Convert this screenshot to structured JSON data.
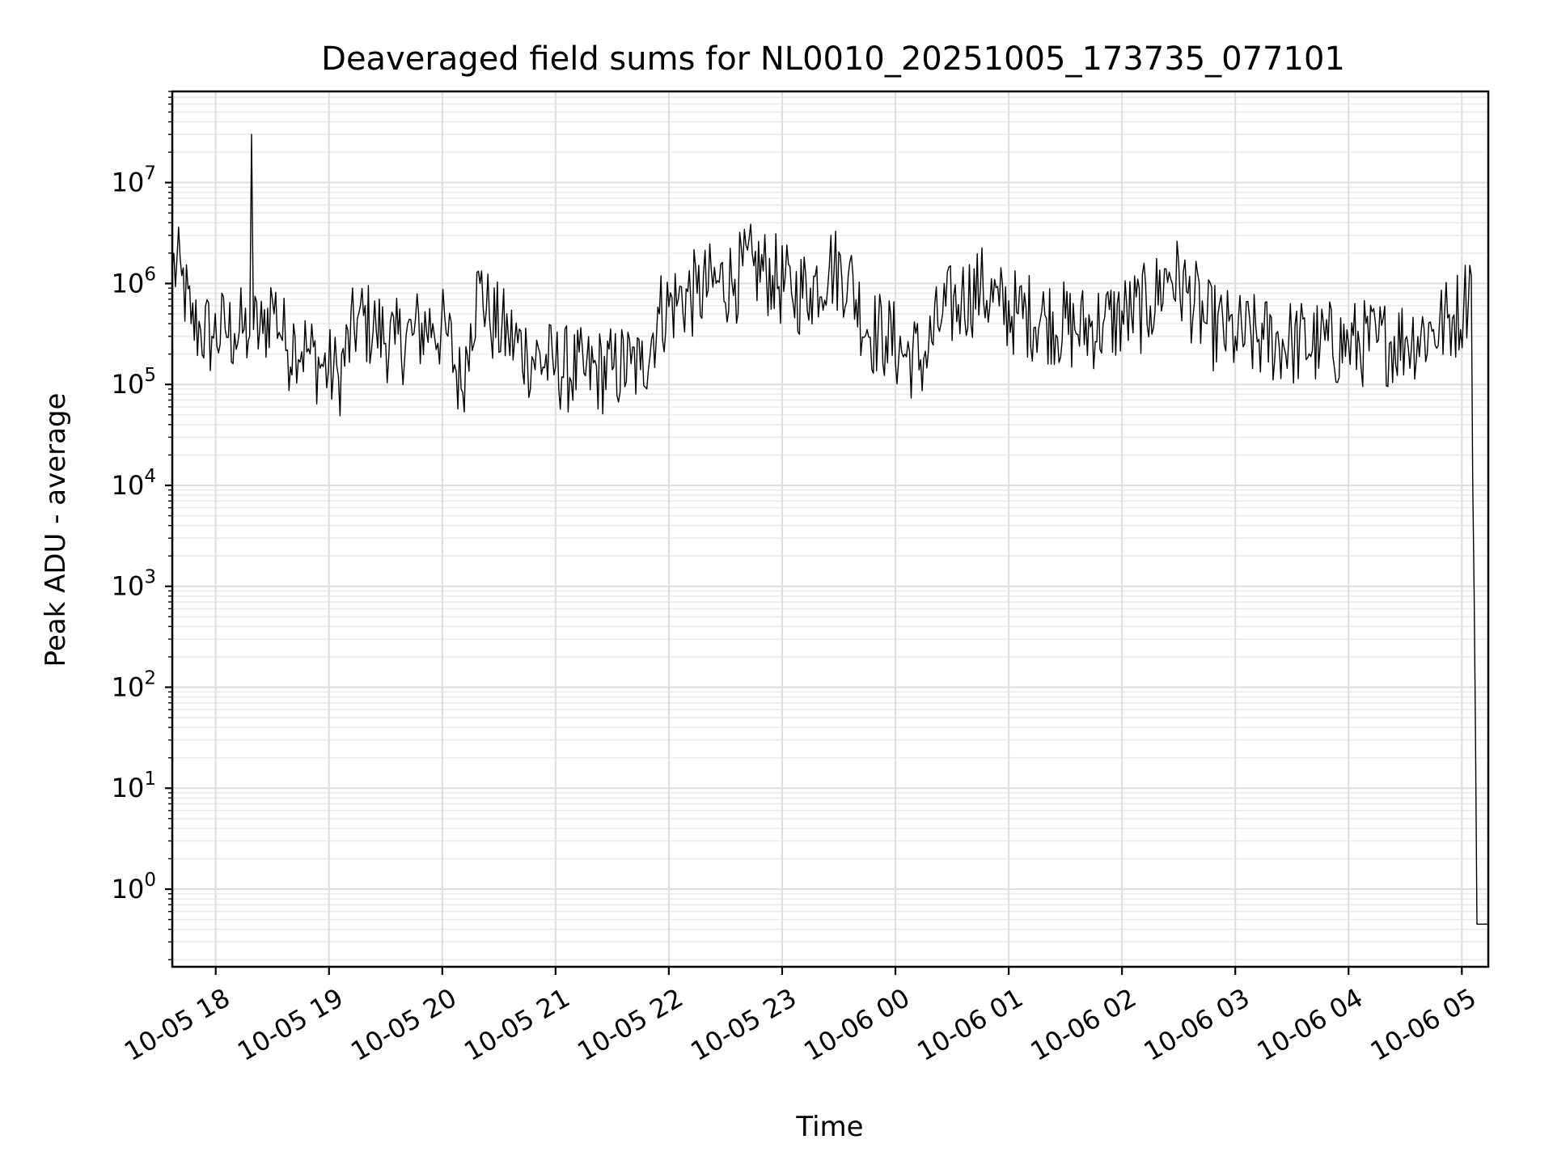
{
  "chart_data": {
    "type": "line",
    "title": "Deaveraged field sums for NL0010_20251005_173735_077101",
    "xlabel": "Time",
    "ylabel": "Peak ADU - average",
    "yscale": "log",
    "grid": true,
    "xlim": [
      "10-05 17:37",
      "10-06 05:14"
    ],
    "ylim": [
      0.17,
      80000000
    ],
    "xticks": [
      "10-05 18",
      "10-05 19",
      "10-05 20",
      "10-05 21",
      "10-05 22",
      "10-05 23",
      "10-06 00",
      "10-06 01",
      "10-06 02",
      "10-06 03",
      "10-06 04",
      "10-06 05"
    ],
    "yticks": [
      {
        "base": "10",
        "exp": "0",
        "value": 1
      },
      {
        "base": "10",
        "exp": "1",
        "value": 10
      },
      {
        "base": "10",
        "exp": "2",
        "value": 100
      },
      {
        "base": "10",
        "exp": "3",
        "value": 1000
      },
      {
        "base": "10",
        "exp": "4",
        "value": 10000
      },
      {
        "base": "10",
        "exp": "5",
        "value": 100000
      },
      {
        "base": "10",
        "exp": "6",
        "value": 1000000
      },
      {
        "base": "10",
        "exp": "7",
        "value": 10000000
      }
    ],
    "series": [
      {
        "color": "#000000",
        "x": [
          "10-05 17:37",
          "10-05 17:42",
          "10-05 17:47",
          "10-05 17:52",
          "10-05 17:58",
          "10-05 18:05",
          "10-05 18:10",
          "10-05 18:15",
          "10-05 18:18",
          "10-05 18:19",
          "10-05 18:20",
          "10-05 18:25",
          "10-05 18:30",
          "10-05 18:38",
          "10-05 18:42",
          "10-05 18:50",
          "10-05 18:57",
          "10-05 19:05",
          "10-05 19:15",
          "10-05 19:25",
          "10-05 19:35",
          "10-05 19:45",
          "10-05 19:55",
          "10-05 20:03",
          "10-05 20:10",
          "10-05 20:15",
          "10-05 20:20",
          "10-05 20:25",
          "10-05 20:35",
          "10-05 20:45",
          "10-05 21:00",
          "10-05 21:15",
          "10-05 21:30",
          "10-05 21:40",
          "10-05 21:45",
          "10-05 21:55",
          "10-05 22:05",
          "10-05 22:15",
          "10-05 22:25",
          "10-05 22:35",
          "10-05 22:45",
          "10-05 22:55",
          "10-05 23:05",
          "10-05 23:15",
          "10-05 23:25",
          "10-05 23:35",
          "10-05 23:45",
          "10-05 23:55",
          "10-06 00:05",
          "10-06 00:15",
          "10-06 00:25",
          "10-06 00:35",
          "10-06 00:45",
          "10-06 00:55",
          "10-06 01:05",
          "10-06 01:20",
          "10-06 01:35",
          "10-06 01:50",
          "10-06 02:05",
          "10-06 02:15",
          "10-06 02:25",
          "10-06 02:35",
          "10-06 02:45",
          "10-06 03:00",
          "10-06 03:15",
          "10-06 03:30",
          "10-06 03:45",
          "10-06 04:00",
          "10-06 04:15",
          "10-06 04:30",
          "10-06 04:45",
          "10-06 04:55",
          "10-06 05:01",
          "10-06 05:05",
          "10-06 05:08",
          "10-06 05:10",
          "10-06 05:14"
        ],
        "y": [
          1500000,
          1200000,
          400000,
          350000,
          300000,
          350000,
          320000,
          350000,
          300000,
          30000000,
          350000,
          320000,
          700000,
          220000,
          300000,
          200000,
          150000,
          120000,
          450000,
          350000,
          250000,
          320000,
          400000,
          300000,
          90000,
          400000,
          1000000,
          450000,
          300000,
          200000,
          150000,
          130000,
          140000,
          160000,
          140000,
          500000,
          700000,
          800000,
          1000000,
          1100000,
          1500000,
          1200000,
          800000,
          900000,
          1500000,
          1200000,
          350000,
          300000,
          200000,
          180000,
          500000,
          700000,
          900000,
          600000,
          500000,
          450000,
          350000,
          400000,
          500000,
          600000,
          1300000,
          800000,
          400000,
          300000,
          280000,
          260000,
          250000,
          250000,
          260000,
          280000,
          350000,
          450000,
          600000,
          1200000,
          0.45,
          0.45,
          0.45
        ]
      }
    ]
  }
}
